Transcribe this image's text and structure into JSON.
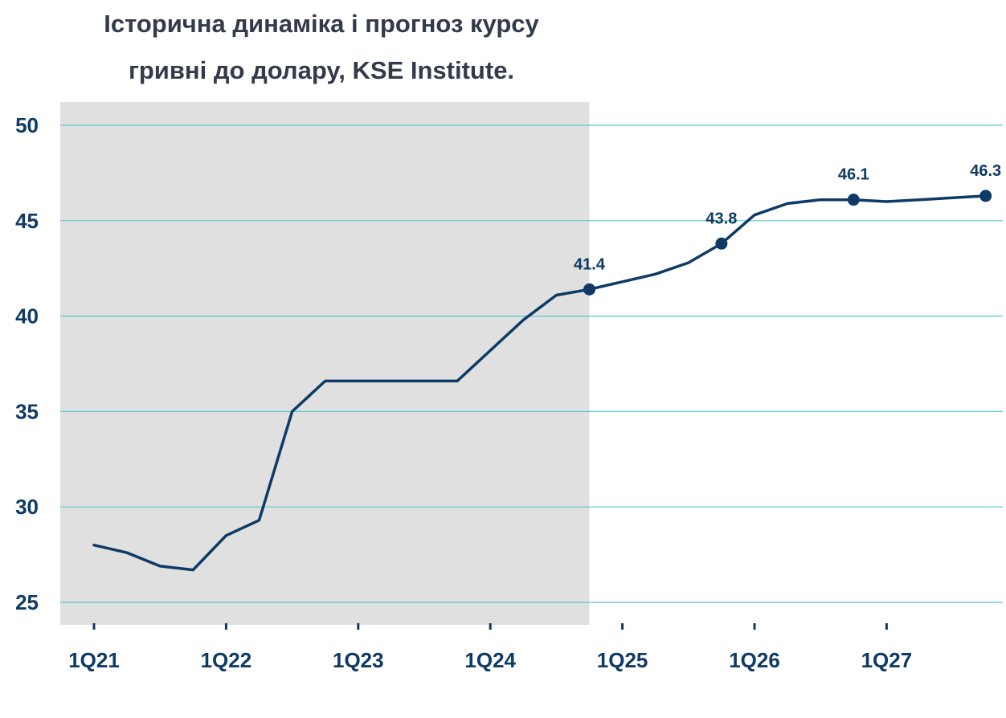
{
  "chart_data": {
    "type": "line",
    "title_line1": "Історична динаміка і прогноз курсу",
    "title_line2": "гривні до долару,  KSE Institute.",
    "xlabel": "",
    "ylabel": "",
    "ylim": [
      25,
      50
    ],
    "yticks": [
      25,
      30,
      35,
      40,
      45,
      50
    ],
    "xticks": [
      "1Q21",
      "1Q22",
      "1Q23",
      "1Q24",
      "1Q25",
      "1Q26",
      "1Q27"
    ],
    "grid": true,
    "x": [
      "1Q21",
      "2Q21",
      "3Q21",
      "4Q21",
      "1Q22",
      "2Q22",
      "3Q22",
      "4Q22",
      "1Q23",
      "2Q23",
      "3Q23",
      "4Q23",
      "1Q24",
      "2Q24",
      "3Q24",
      "4Q24",
      "1Q25",
      "2Q25",
      "3Q25",
      "4Q25",
      "1Q26",
      "2Q26",
      "3Q26",
      "4Q26",
      "1Q27",
      "2Q27",
      "3Q27",
      "4Q27"
    ],
    "series": [
      {
        "values": [
          28.0,
          27.6,
          26.9,
          26.7,
          28.5,
          29.3,
          35.0,
          36.6,
          36.6,
          36.6,
          36.6,
          36.6,
          38.2,
          39.8,
          41.1,
          41.4,
          41.8,
          42.2,
          42.8,
          43.8,
          45.3,
          45.9,
          46.1,
          46.1,
          46.0,
          46.1,
          46.2,
          46.3
        ]
      }
    ],
    "highlighted_points": [
      {
        "x": "4Q24",
        "value": 41.4,
        "label": "41.4"
      },
      {
        "x": "4Q25",
        "value": 43.8,
        "label": "43.8"
      },
      {
        "x": "4Q26",
        "value": 46.1,
        "label": "46.1"
      },
      {
        "x": "4Q27",
        "value": 46.3,
        "label": "46.3"
      }
    ],
    "shaded_region": {
      "from": "1Q21",
      "to": "4Q24",
      "meaning": "historical"
    },
    "colors": {
      "line": "#0e3a66",
      "grid": "#5bc8d0",
      "shade": "#e0e0e0",
      "title": "#333a4a"
    }
  }
}
